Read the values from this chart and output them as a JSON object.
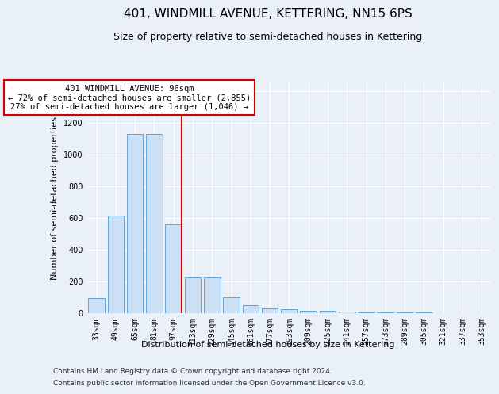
{
  "title": "401, WINDMILL AVENUE, KETTERING, NN15 6PS",
  "subtitle": "Size of property relative to semi-detached houses in Kettering",
  "xlabel": "Distribution of semi-detached houses by size in Kettering",
  "ylabel": "Number of semi-detached properties",
  "categories": [
    "33sqm",
    "49sqm",
    "65sqm",
    "81sqm",
    "97sqm",
    "113sqm",
    "129sqm",
    "145sqm",
    "161sqm",
    "177sqm",
    "193sqm",
    "209sqm",
    "225sqm",
    "241sqm",
    "257sqm",
    "273sqm",
    "289sqm",
    "305sqm",
    "321sqm",
    "337sqm",
    "353sqm"
  ],
  "values": [
    95,
    615,
    1130,
    1130,
    560,
    225,
    225,
    100,
    47,
    30,
    25,
    15,
    12,
    8,
    5,
    3,
    2,
    1,
    0,
    0,
    0
  ],
  "bar_color": "#cce0f5",
  "bar_edge_color": "#5599cc",
  "vline_color": "#cc0000",
  "annotation_text": "401 WINDMILL AVENUE: 96sqm\n← 72% of semi-detached houses are smaller (2,855)\n27% of semi-detached houses are larger (1,046) →",
  "annotation_box_color": "#ffffff",
  "annotation_box_edge_color": "#cc0000",
  "ylim": [
    0,
    1450
  ],
  "yticks": [
    0,
    200,
    400,
    600,
    800,
    1000,
    1200,
    1400
  ],
  "footer1": "Contains HM Land Registry data © Crown copyright and database right 2024.",
  "footer2": "Contains public sector information licensed under the Open Government Licence v3.0.",
  "background_color": "#eaf0f8",
  "plot_background_color": "#eaf0f8",
  "grid_color": "#ffffff",
  "title_fontsize": 11,
  "subtitle_fontsize": 9,
  "label_fontsize": 8,
  "tick_fontsize": 7,
  "footer_fontsize": 6.5,
  "annotation_fontsize": 7.5
}
